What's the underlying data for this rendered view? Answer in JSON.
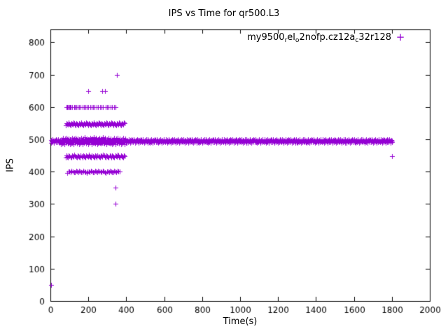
{
  "chart_data": {
    "type": "scatter",
    "title": "IPS vs Time for qr500.L3",
    "xlabel": "Time(s)",
    "ylabel": "IPS",
    "xlim": [
      0,
      2000
    ],
    "ylim": [
      0,
      840
    ],
    "xticks": [
      0,
      200,
      400,
      600,
      800,
      1000,
      1200,
      1400,
      1600,
      1800,
      2000
    ],
    "yticks": [
      0,
      100,
      200,
      300,
      400,
      500,
      600,
      700,
      800
    ],
    "grid": false,
    "legend": {
      "position": "top-right",
      "marker_glyph": "+",
      "label_plain": "my9500_rel_o2nofp.cz12a_c32r128",
      "segments": [
        {
          "text": "my9500",
          "sub": false
        },
        {
          "text": "r",
          "sub": true
        },
        {
          "text": "el",
          "sub": false
        },
        {
          "text": "o",
          "sub": true
        },
        {
          "text": "2nofp.cz12a",
          "sub": false
        },
        {
          "text": "c",
          "sub": true
        },
        {
          "text": "32r128",
          "sub": false
        }
      ]
    },
    "series": [
      {
        "name": "my9500_rel_o2nofp.cz12a_c32r128",
        "color": "#9400D3",
        "marker": "plus",
        "points": [
          [
            2,
            50
          ],
          [
            200,
            650
          ],
          [
            272,
            650
          ],
          [
            287,
            650
          ],
          [
            350,
            700
          ],
          [
            345,
            350
          ],
          [
            345,
            300
          ],
          [
            1800,
            448
          ]
        ],
        "rows": [
          {
            "y": 600,
            "xs": [
              86,
              90,
              94,
              98,
              102,
              108,
              116,
              124,
              130,
              136,
              144,
              152,
              160,
              168,
              176,
              184,
              192,
              200,
              210,
              218,
              226,
              234,
              242,
              252,
              262,
              270,
              278,
              290,
              300,
              308,
              316,
              326,
              334,
              342
            ]
          }
        ],
        "bands": [
          {
            "x_start": 2,
            "x_end": 1802,
            "y_min": 489,
            "y_max": 501,
            "count": 700
          },
          {
            "x_start": 55,
            "x_end": 400,
            "y_min": 484,
            "y_max": 506,
            "count": 130
          },
          {
            "x_start": 80,
            "x_end": 392,
            "y_min": 543,
            "y_max": 552,
            "count": 85
          },
          {
            "x_start": 80,
            "x_end": 392,
            "y_min": 443,
            "y_max": 452,
            "count": 75
          },
          {
            "x_start": 90,
            "x_end": 365,
            "y_min": 397,
            "y_max": 403,
            "count": 50
          }
        ]
      }
    ]
  }
}
